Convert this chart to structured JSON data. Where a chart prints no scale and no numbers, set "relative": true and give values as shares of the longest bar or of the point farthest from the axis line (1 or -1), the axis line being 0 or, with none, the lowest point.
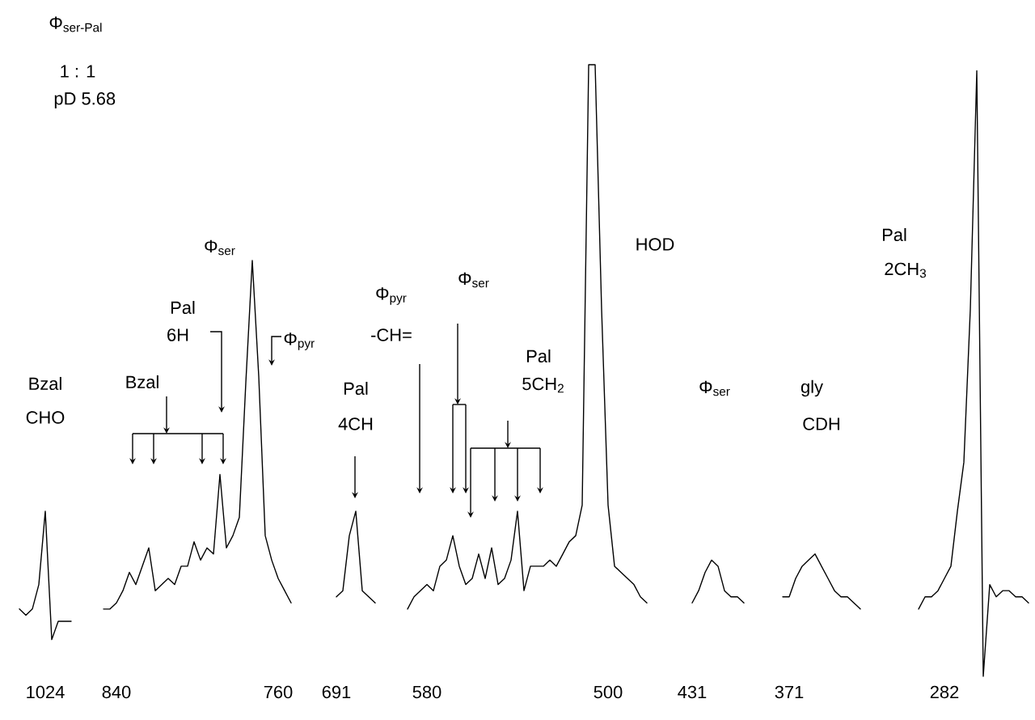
{
  "chart_data": {
    "type": "line",
    "relative": true,
    "tick_labels": "x",
    "color": "#000000",
    "categories": [
      null,
      null,
      null,
      null,
      null,
      "1024",
      null,
      null,
      null,
      null,
      null,
      null,
      null,
      null,
      null,
      null,
      "840",
      null,
      null,
      null,
      null,
      null,
      null,
      null,
      null,
      null,
      null,
      null,
      null,
      null,
      null,
      null,
      null,
      null,
      null,
      null,
      null,
      null,
      null,
      null,
      null,
      "760",
      null,
      null,
      null,
      null,
      null,
      null,
      null,
      null,
      "691",
      null,
      null,
      null,
      null,
      null,
      null,
      null,
      null,
      null,
      null,
      null,
      null,
      null,
      "580",
      null,
      null,
      null,
      null,
      null,
      null,
      null,
      null,
      null,
      null,
      null,
      null,
      null,
      null,
      null,
      null,
      null,
      null,
      null,
      null,
      null,
      null,
      null,
      null,
      null,
      null,
      null,
      "500",
      null,
      null,
      null,
      null,
      null,
      null,
      null,
      null,
      null,
      null,
      null,
      null,
      "431",
      null,
      null,
      null,
      null,
      null,
      null,
      null,
      null,
      null,
      null,
      null,
      null,
      null,
      null,
      "371",
      null,
      null,
      null,
      null,
      null,
      null,
      null,
      null,
      null,
      null,
      null,
      null,
      null,
      null,
      null,
      null,
      null,
      null,
      null,
      null,
      null,
      null,
      null,
      "282",
      null,
      null,
      null,
      null,
      null,
      null,
      null,
      null,
      null,
      null,
      null,
      null,
      null
    ],
    "values": [
      null,
      0.11,
      0.1,
      0.11,
      0.15,
      0.27,
      0.06,
      0.09,
      0.09,
      0.09,
      null,
      null,
      null,
      null,
      0.11,
      0.11,
      0.12,
      0.14,
      0.17,
      0.15,
      0.18,
      0.21,
      0.14,
      0.15,
      0.16,
      0.15,
      0.18,
      0.18,
      0.22,
      0.19,
      0.21,
      0.2,
      0.33,
      0.21,
      0.23,
      0.26,
      0.48,
      0.68,
      0.49,
      0.23,
      0.19,
      0.16,
      0.14,
      0.12,
      null,
      null,
      null,
      null,
      null,
      null,
      0.13,
      0.14,
      0.23,
      0.27,
      0.14,
      0.13,
      0.12,
      null,
      null,
      null,
      null,
      0.11,
      0.13,
      0.14,
      0.15,
      0.14,
      0.18,
      0.19,
      0.23,
      0.18,
      0.15,
      0.16,
      0.2,
      0.16,
      0.21,
      0.15,
      0.16,
      0.19,
      0.27,
      0.14,
      0.18,
      0.18,
      0.18,
      0.19,
      0.18,
      0.2,
      0.22,
      0.23,
      0.28,
      1,
      1,
      0.6,
      0.28,
      0.18,
      0.17,
      0.16,
      0.15,
      0.13,
      0.12,
      null,
      null,
      null,
      null,
      null,
      null,
      0.12,
      0.14,
      0.17,
      0.19,
      0.18,
      0.14,
      0.13,
      0.13,
      0.12,
      null,
      null,
      null,
      null,
      null,
      0.13,
      0.13,
      0.16,
      0.18,
      0.19,
      0.2,
      0.18,
      0.16,
      0.14,
      0.13,
      0.13,
      0.12,
      0.11,
      null,
      null,
      null,
      null,
      null,
      null,
      null,
      null,
      0.11,
      0.13,
      0.13,
      0.14,
      0.16,
      0.18,
      0.27,
      0.35,
      0.6,
      0.99,
      0,
      0.15,
      0.13,
      0.14,
      0.14,
      0.13,
      0.13,
      0.12
    ],
    "annotations": [
      "Φ$_{ser-Pal}$",
      "1 : 1",
      "pD 5.68",
      "Bzal",
      "CHO",
      "Bzal",
      "Pal",
      "6H",
      "Φ$_{ser}$",
      "Φ$_{pyr}$",
      "Pal",
      "4CH",
      "Φ$_{pyr}$",
      "-CH=",
      "Φ$_{ser}$",
      "Pal",
      "5CH$_{2}$",
      "HOD",
      "Φ$_{ser}$",
      "gly",
      "CDH",
      "Pal",
      "2CH$_{3}$"
    ]
  }
}
